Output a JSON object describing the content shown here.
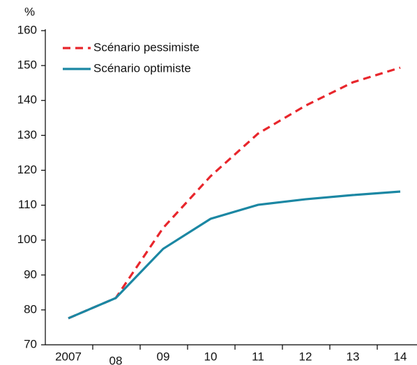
{
  "chart_data": {
    "type": "line",
    "y_label": "%",
    "categories": [
      "2007",
      "08",
      "09",
      "10",
      "11",
      "12",
      "13",
      "14"
    ],
    "series": [
      {
        "name": "Scénario pessimiste",
        "color": "#e8262c",
        "dash": true,
        "values": [
          77.6,
          83.4,
          103.5,
          118.3,
          130.5,
          138.5,
          145.2,
          149.4
        ]
      },
      {
        "name": "Scénario optimiste",
        "color": "#1b87a3",
        "dash": false,
        "values": [
          77.6,
          83.4,
          97.5,
          106.1,
          110.1,
          111.7,
          112.9,
          113.9
        ]
      }
    ],
    "ylim": [
      70,
      160
    ],
    "yticks": [
      70,
      80,
      90,
      100,
      110,
      120,
      130,
      140,
      150,
      160
    ],
    "legend": "upper left",
    "grid": false
  }
}
